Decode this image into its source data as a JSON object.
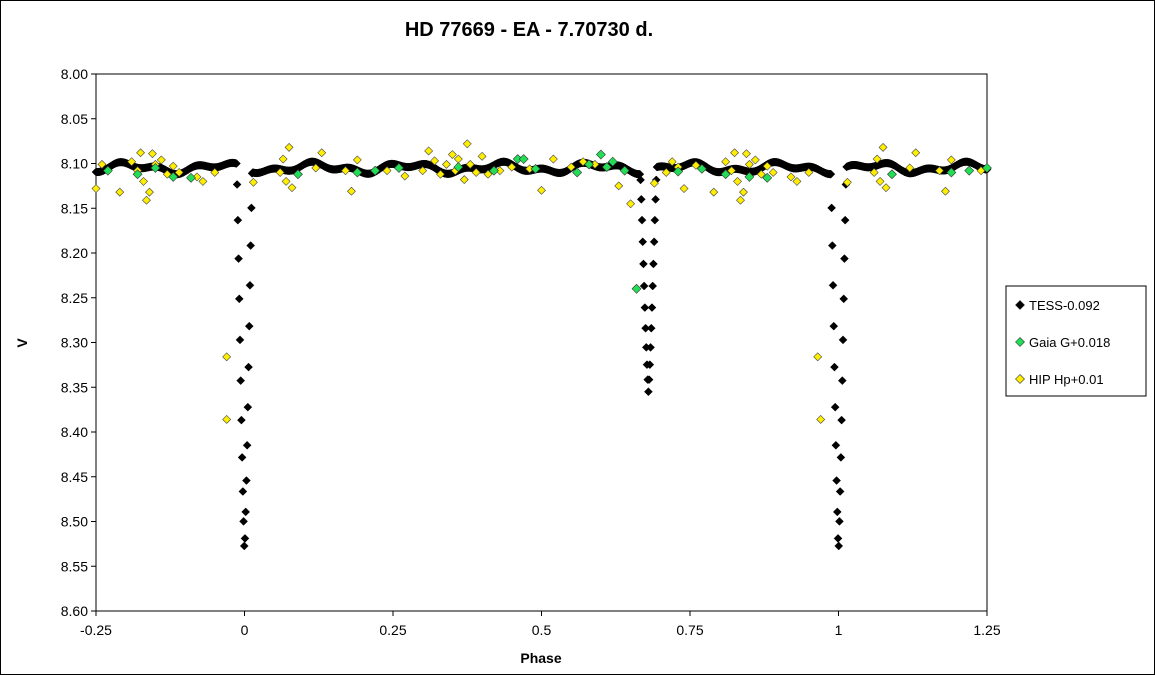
{
  "chart_data": {
    "type": "scatter",
    "title": "HD 77669  - EA - 7.70730  d.",
    "xlabel": "Phase",
    "ylabel": "V",
    "xlim": [
      -0.25,
      1.25
    ],
    "ylim": [
      8.6,
      8.0
    ],
    "y_inverted": true,
    "grid": false,
    "legend_position": "right",
    "x_ticks": [
      "-0.25",
      "0",
      "0.25",
      "0.5",
      "0.75",
      "1",
      "1.25"
    ],
    "x_tick_values": [
      -0.25,
      0,
      0.25,
      0.5,
      0.75,
      1,
      1.25
    ],
    "y_ticks": [
      "8.00",
      "8.05",
      "8.10",
      "8.15",
      "8.20",
      "8.25",
      "8.30",
      "8.35",
      "8.40",
      "8.45",
      "8.50",
      "8.55",
      "8.60"
    ],
    "y_tick_values": [
      8.0,
      8.05,
      8.1,
      8.15,
      8.2,
      8.25,
      8.3,
      8.35,
      8.4,
      8.45,
      8.5,
      8.55,
      8.6
    ],
    "series": [
      {
        "name": "TESS-0.092",
        "marker": "diamond",
        "color": "#000000",
        "baseline": 8.105,
        "eclipses": [
          {
            "center": 0.0,
            "depth": 8.535,
            "half_width": 0.013
          },
          {
            "center": 0.68,
            "depth": 8.355,
            "half_width": 0.014
          },
          {
            "center": 1.0,
            "depth": 8.535,
            "half_width": 0.013
          }
        ],
        "x_range": [
          -0.25,
          1.25
        ]
      },
      {
        "name": "Gaia G+0.018",
        "marker": "diamond",
        "color": "#22dd55",
        "points": [
          [
            -0.23,
            8.108
          ],
          [
            -0.18,
            8.112
          ],
          [
            -0.15,
            8.105
          ],
          [
            -0.12,
            8.115
          ],
          [
            -0.09,
            8.116
          ],
          [
            0.09,
            8.112
          ],
          [
            0.19,
            8.11
          ],
          [
            0.22,
            8.108
          ],
          [
            0.26,
            8.105
          ],
          [
            0.36,
            8.104
          ],
          [
            0.42,
            8.108
          ],
          [
            0.46,
            8.095
          ],
          [
            0.47,
            8.095
          ],
          [
            0.49,
            8.106
          ],
          [
            0.56,
            8.11
          ],
          [
            0.58,
            8.101
          ],
          [
            0.6,
            8.09
          ],
          [
            0.61,
            8.104
          ],
          [
            0.62,
            8.098
          ],
          [
            0.64,
            8.108
          ],
          [
            0.66,
            8.24
          ],
          [
            0.73,
            8.109
          ],
          [
            0.77,
            8.106
          ],
          [
            0.81,
            8.112
          ],
          [
            0.85,
            8.115
          ],
          [
            0.88,
            8.116
          ],
          [
            1.09,
            8.112
          ],
          [
            1.19,
            8.11
          ],
          [
            1.22,
            8.108
          ],
          [
            1.25,
            8.105
          ]
        ]
      },
      {
        "name": "HIP Hp+0.01",
        "marker": "diamond",
        "color": "#ffee00",
        "points": [
          [
            -0.25,
            8.128
          ],
          [
            -0.24,
            8.101
          ],
          [
            -0.21,
            8.132
          ],
          [
            -0.19,
            8.098
          ],
          [
            -0.18,
            8.108
          ],
          [
            -0.175,
            8.088
          ],
          [
            -0.17,
            8.12
          ],
          [
            -0.165,
            8.141
          ],
          [
            -0.16,
            8.132
          ],
          [
            -0.155,
            8.089
          ],
          [
            -0.15,
            8.101
          ],
          [
            -0.14,
            8.096
          ],
          [
            -0.13,
            8.112
          ],
          [
            -0.12,
            8.103
          ],
          [
            -0.11,
            8.11
          ],
          [
            -0.08,
            8.115
          ],
          [
            -0.07,
            8.12
          ],
          [
            -0.05,
            8.11
          ],
          [
            -0.03,
            8.316
          ],
          [
            -0.03,
            8.386
          ],
          [
            0.015,
            8.121
          ],
          [
            0.06,
            8.11
          ],
          [
            0.065,
            8.095
          ],
          [
            0.07,
            8.12
          ],
          [
            0.075,
            8.082
          ],
          [
            0.08,
            8.127
          ],
          [
            0.12,
            8.105
          ],
          [
            0.13,
            8.088
          ],
          [
            0.17,
            8.108
          ],
          [
            0.18,
            8.131
          ],
          [
            0.19,
            8.096
          ],
          [
            0.24,
            8.108
          ],
          [
            0.27,
            8.114
          ],
          [
            0.3,
            8.108
          ],
          [
            0.31,
            8.086
          ],
          [
            0.32,
            8.097
          ],
          [
            0.33,
            8.112
          ],
          [
            0.34,
            8.101
          ],
          [
            0.35,
            8.09
          ],
          [
            0.355,
            8.108
          ],
          [
            0.36,
            8.095
          ],
          [
            0.37,
            8.118
          ],
          [
            0.375,
            8.078
          ],
          [
            0.38,
            8.101
          ],
          [
            0.39,
            8.11
          ],
          [
            0.4,
            8.092
          ],
          [
            0.41,
            8.112
          ],
          [
            0.43,
            8.108
          ],
          [
            0.45,
            8.104
          ],
          [
            0.48,
            8.106
          ],
          [
            0.5,
            8.13
          ],
          [
            0.52,
            8.095
          ],
          [
            0.55,
            8.104
          ],
          [
            0.57,
            8.098
          ],
          [
            0.59,
            8.101
          ],
          [
            0.63,
            8.125
          ],
          [
            0.65,
            8.145
          ],
          [
            0.69,
            8.122
          ],
          [
            0.71,
            8.11
          ],
          [
            0.72,
            8.098
          ],
          [
            0.73,
            8.104
          ],
          [
            0.74,
            8.128
          ],
          [
            0.76,
            8.102
          ],
          [
            0.79,
            8.132
          ],
          [
            0.81,
            8.098
          ],
          [
            0.82,
            8.108
          ],
          [
            0.825,
            8.088
          ],
          [
            0.83,
            8.12
          ],
          [
            0.835,
            8.141
          ],
          [
            0.84,
            8.132
          ],
          [
            0.845,
            8.089
          ],
          [
            0.85,
            8.101
          ],
          [
            0.86,
            8.096
          ],
          [
            0.87,
            8.112
          ],
          [
            0.88,
            8.103
          ],
          [
            0.89,
            8.11
          ],
          [
            0.92,
            8.115
          ],
          [
            0.93,
            8.12
          ],
          [
            0.95,
            8.11
          ],
          [
            0.965,
            8.316
          ],
          [
            0.97,
            8.386
          ],
          [
            1.015,
            8.121
          ],
          [
            1.06,
            8.11
          ],
          [
            1.065,
            8.095
          ],
          [
            1.07,
            8.12
          ],
          [
            1.075,
            8.082
          ],
          [
            1.08,
            8.127
          ],
          [
            1.12,
            8.105
          ],
          [
            1.13,
            8.088
          ],
          [
            1.17,
            8.108
          ],
          [
            1.18,
            8.131
          ],
          [
            1.19,
            8.096
          ],
          [
            1.24,
            8.108
          ]
        ]
      }
    ]
  }
}
